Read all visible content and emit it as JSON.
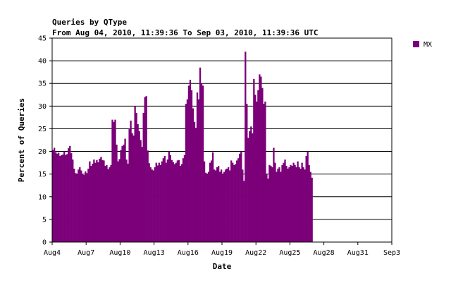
{
  "chart_data": {
    "type": "bar",
    "title": "Queries by QType",
    "subtitle": "From Aug 04, 2010, 11:39:36 To Sep 03, 2010, 11:39:36 UTC",
    "xlabel": "Date",
    "ylabel": "Percent of Queries",
    "ylim": [
      0,
      45
    ],
    "yticks": [
      0,
      5,
      10,
      15,
      20,
      25,
      30,
      35,
      40,
      45
    ],
    "xlim": [
      "2010-08-04",
      "2010-09-03"
    ],
    "xticks": [
      "Aug4",
      "Aug7",
      "Aug10",
      "Aug13",
      "Aug16",
      "Aug19",
      "Aug22",
      "Aug25",
      "Aug28",
      "Aug31",
      "Sep3"
    ],
    "xtick_dates": [
      "2010-08-04",
      "2010-08-07",
      "2010-08-10",
      "2010-08-13",
      "2010-08-16",
      "2010-08-19",
      "2010-08-22",
      "2010-08-25",
      "2010-08-28",
      "2010-08-31",
      "2010-09-03"
    ],
    "grid": "horizontal",
    "legend_position": "top-right",
    "series": [
      {
        "name": "MX",
        "color": "#7b0079",
        "start": "2010-08-04",
        "interval_hours": 3,
        "values": [
          20.3,
          20.8,
          19.8,
          19.5,
          19.7,
          19.0,
          19.2,
          19.3,
          20.0,
          19.2,
          19.4,
          20.7,
          21.2,
          19.6,
          18.2,
          16.2,
          15.2,
          15.0,
          16.0,
          16.5,
          15.8,
          15.0,
          14.8,
          15.6,
          15.2,
          16.2,
          17.8,
          16.8,
          17.3,
          18.2,
          17.5,
          18.1,
          17.6,
          18.4,
          18.8,
          18.1,
          18.0,
          16.8,
          17.0,
          16.1,
          16.5,
          17.0,
          27.0,
          26.5,
          27.0,
          21.5,
          17.8,
          18.3,
          20.3,
          21.2,
          21.5,
          22.8,
          18.2,
          17.3,
          25.0,
          26.8,
          24.0,
          23.5,
          30.0,
          28.5,
          26.0,
          24.5,
          22.5,
          21.0,
          28.5,
          32.0,
          32.2,
          20.2,
          17.4,
          16.5,
          16.0,
          15.8,
          16.5,
          17.5,
          16.9,
          17.5,
          17.0,
          17.8,
          18.5,
          19.0,
          17.5,
          18.2,
          20.0,
          19.2,
          18.1,
          17.6,
          17.2,
          17.5,
          18.0,
          18.1,
          16.8,
          17.2,
          18.5,
          19.2,
          30.5,
          31.5,
          34.5,
          35.8,
          33.5,
          29.5,
          26.5,
          25.2,
          33.0,
          31.5,
          38.5,
          35.0,
          34.5,
          17.8,
          15.3,
          15.0,
          15.5,
          17.5,
          18.0,
          19.8,
          16.0,
          15.8,
          16.5,
          16.8,
          15.5,
          16.0,
          15.0,
          15.5,
          16.0,
          16.2,
          16.5,
          15.8,
          18.0,
          17.5,
          17.0,
          17.2,
          18.0,
          18.5,
          19.5,
          20.0,
          16.0,
          13.5,
          42.0,
          30.5,
          23.0,
          24.5,
          25.5,
          24.0,
          36.0,
          32.5,
          31.0,
          33.5,
          37.0,
          36.5,
          34.0,
          30.5,
          31.0,
          15.0,
          14.0,
          17.0,
          16.8,
          16.5,
          20.8,
          17.5,
          15.5,
          16.2,
          16.5,
          15.5,
          17.0,
          17.5,
          18.2,
          16.8,
          16.2,
          16.5,
          17.0,
          16.8,
          17.5,
          17.0,
          16.5,
          17.8,
          16.5,
          16.2,
          17.5,
          16.5,
          16.0,
          19.0,
          20.0,
          17.0,
          15.5,
          14.2
        ]
      }
    ]
  }
}
